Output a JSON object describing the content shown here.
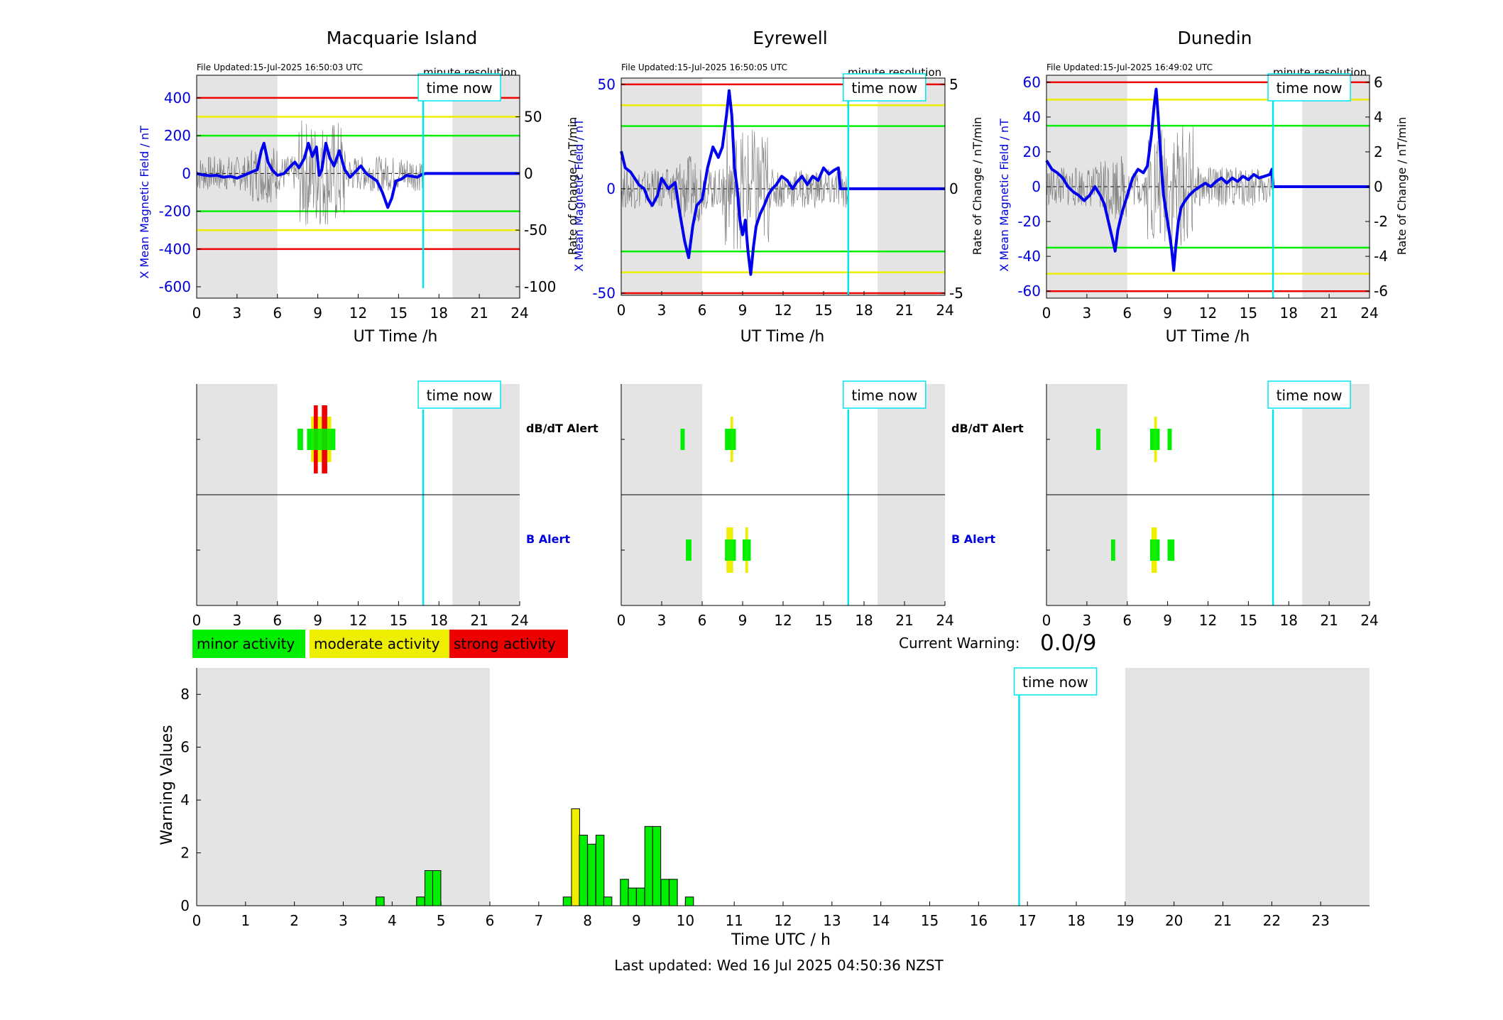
{
  "colors": {
    "night_shade": "#e4e4e4",
    "field_line": "#0000ee",
    "rate_line": "#555555",
    "time_now": "#00e5ee",
    "red": "#ee0000",
    "yellow": "#eeee00",
    "green": "#00ee00",
    "axis_blue": "#0000dd"
  },
  "time_now_label": "time now",
  "minute_resolution_label": "minute resolution",
  "x_axis_label": "UT Time /h",
  "field_axis_label": "X Mean Magnetic Field / nT",
  "rate_axis_label": "Rate of Change / nT/min",
  "alert_labels": {
    "dbdt": "dB/dT Alert",
    "b": "B Alert"
  },
  "legend": {
    "minor": "minor activity",
    "moderate": "moderate activity",
    "strong": "strong activity"
  },
  "current_warning": {
    "label": "Current Warning:",
    "value": "0.0/9"
  },
  "footer": {
    "last_updated": "Last updated: Wed 16 Jul 2025 04:50:36 NZST"
  },
  "chart_data": [
    {
      "type": "line",
      "title": "Macquarie Island",
      "file_updated": "File Updated:15-Jul-2025 16:50:03 UTC",
      "x_ticks": [
        0,
        3,
        6,
        9,
        12,
        15,
        18,
        21,
        24
      ],
      "xlim": [
        0,
        24
      ],
      "night_hours": [
        [
          0,
          6
        ],
        [
          19,
          24
        ]
      ],
      "time_now_hour": 16.83,
      "ylim_left": [
        -660,
        520
      ],
      "yticks_left": [
        400,
        200,
        0,
        -200,
        -400,
        -600
      ],
      "ylim_right": [
        -110,
        86.7
      ],
      "yticks_right": [
        50,
        0,
        -50,
        -100
      ],
      "thresholds": {
        "red": 400,
        "yellow": 300,
        "green": 200
      },
      "series": [
        {
          "values": [
            [
              0,
              0
            ],
            [
              0.5,
              -8
            ],
            [
              1,
              -12
            ],
            [
              1.5,
              -10
            ],
            [
              2,
              -20
            ],
            [
              2.5,
              -15
            ],
            [
              3,
              -25
            ],
            [
              3.5,
              -10
            ],
            [
              4,
              5
            ],
            [
              4.5,
              20
            ],
            [
              4.8,
              120
            ],
            [
              5,
              160
            ],
            [
              5.3,
              60
            ],
            [
              5.6,
              20
            ],
            [
              6,
              -10
            ],
            [
              6.5,
              0
            ],
            [
              7,
              40
            ],
            [
              7.3,
              60
            ],
            [
              7.6,
              30
            ],
            [
              8,
              80
            ],
            [
              8.3,
              160
            ],
            [
              8.6,
              90
            ],
            [
              8.9,
              140
            ],
            [
              9.1,
              -10
            ],
            [
              9.3,
              20
            ],
            [
              9.6,
              160
            ],
            [
              9.9,
              80
            ],
            [
              10.2,
              40
            ],
            [
              10.6,
              120
            ],
            [
              11,
              20
            ],
            [
              11.4,
              -20
            ],
            [
              11.8,
              10
            ],
            [
              12.2,
              40
            ],
            [
              12.6,
              0
            ],
            [
              13,
              -20
            ],
            [
              13.4,
              -40
            ],
            [
              13.8,
              -100
            ],
            [
              14.2,
              -180
            ],
            [
              14.5,
              -130
            ],
            [
              14.8,
              -40
            ],
            [
              15.2,
              -30
            ],
            [
              15.6,
              -10
            ],
            [
              16,
              -15
            ],
            [
              16.4,
              -20
            ],
            [
              16.75,
              -5
            ],
            [
              17,
              0
            ],
            [
              24,
              0
            ]
          ]
        }
      ]
    },
    {
      "type": "line",
      "title": "Eyrewell",
      "file_updated": "File Updated:15-Jul-2025 16:50:05 UTC",
      "x_ticks": [
        0,
        3,
        6,
        9,
        12,
        15,
        18,
        21,
        24
      ],
      "xlim": [
        0,
        24
      ],
      "night_hours": [
        [
          0,
          6
        ],
        [
          19,
          24
        ]
      ],
      "time_now_hour": 16.83,
      "ylim_left": [
        -51,
        53
      ],
      "yticks_left": [
        50,
        0,
        -50
      ],
      "ylim_right": [
        -5.1,
        5.3
      ],
      "yticks_right": [
        5,
        0,
        -5
      ],
      "thresholds": {
        "red": 50,
        "yellow": 40,
        "green": 30
      },
      "series": [
        {
          "values": [
            [
              0,
              18
            ],
            [
              0.3,
              10
            ],
            [
              0.7,
              8
            ],
            [
              1,
              5
            ],
            [
              1.3,
              2
            ],
            [
              1.7,
              0
            ],
            [
              2,
              -5
            ],
            [
              2.3,
              -8
            ],
            [
              2.7,
              -3
            ],
            [
              3,
              5
            ],
            [
              3.5,
              0
            ],
            [
              4,
              3
            ],
            [
              4.3,
              -10
            ],
            [
              4.7,
              -25
            ],
            [
              5,
              -33
            ],
            [
              5.3,
              -18
            ],
            [
              5.6,
              -8
            ],
            [
              6,
              -5
            ],
            [
              6.4,
              10
            ],
            [
              6.8,
              20
            ],
            [
              7.2,
              15
            ],
            [
              7.5,
              20
            ],
            [
              7.8,
              35
            ],
            [
              8,
              47
            ],
            [
              8.2,
              35
            ],
            [
              8.4,
              10
            ],
            [
              8.6,
              0
            ],
            [
              8.8,
              -15
            ],
            [
              9,
              -22
            ],
            [
              9.2,
              -15
            ],
            [
              9.4,
              -30
            ],
            [
              9.6,
              -41
            ],
            [
              9.8,
              -28
            ],
            [
              10,
              -18
            ],
            [
              10.3,
              -12
            ],
            [
              10.6,
              -8
            ],
            [
              10.9,
              -3
            ],
            [
              11.2,
              0
            ],
            [
              11.5,
              2
            ],
            [
              11.9,
              6
            ],
            [
              12.3,
              4
            ],
            [
              12.7,
              0
            ],
            [
              13,
              3
            ],
            [
              13.4,
              6
            ],
            [
              13.8,
              2
            ],
            [
              14.2,
              6
            ],
            [
              14.6,
              4
            ],
            [
              15,
              10
            ],
            [
              15.4,
              7
            ],
            [
              15.8,
              9
            ],
            [
              16.1,
              10
            ],
            [
              16.25,
              0
            ],
            [
              17,
              0
            ],
            [
              24,
              0
            ]
          ]
        }
      ]
    },
    {
      "type": "line",
      "title": "Dunedin",
      "file_updated": "File Updated:15-Jul-2025 16:49:02 UTC",
      "x_ticks": [
        0,
        3,
        6,
        9,
        12,
        15,
        18,
        21,
        24
      ],
      "xlim": [
        0,
        24
      ],
      "night_hours": [
        [
          0,
          6
        ],
        [
          19,
          24
        ]
      ],
      "time_now_hour": 16.83,
      "ylim_left": [
        -64,
        64
      ],
      "yticks_left": [
        60,
        40,
        20,
        0,
        -20,
        -40,
        -60
      ],
      "ylim_right": [
        -6.4,
        6.4
      ],
      "yticks_right": [
        6,
        4,
        2,
        0,
        -2,
        -4,
        -6
      ],
      "thresholds": {
        "red": 60,
        "yellow": 50,
        "green": 35
      },
      "series": [
        {
          "values": [
            [
              0,
              15
            ],
            [
              0.4,
              10
            ],
            [
              0.8,
              8
            ],
            [
              1.2,
              5
            ],
            [
              1.6,
              0
            ],
            [
              2,
              -3
            ],
            [
              2.4,
              -5
            ],
            [
              2.8,
              -8
            ],
            [
              3.2,
              -5
            ],
            [
              3.6,
              0
            ],
            [
              4,
              -5
            ],
            [
              4.3,
              -10
            ],
            [
              4.6,
              -20
            ],
            [
              4.9,
              -30
            ],
            [
              5.1,
              -37
            ],
            [
              5.3,
              -25
            ],
            [
              5.6,
              -15
            ],
            [
              6,
              -5
            ],
            [
              6.4,
              5
            ],
            [
              6.8,
              10
            ],
            [
              7.2,
              8
            ],
            [
              7.5,
              12
            ],
            [
              7.8,
              30
            ],
            [
              8,
              47
            ],
            [
              8.15,
              56
            ],
            [
              8.3,
              40
            ],
            [
              8.5,
              15
            ],
            [
              8.7,
              -5
            ],
            [
              8.9,
              -15
            ],
            [
              9.1,
              -25
            ],
            [
              9.3,
              -36
            ],
            [
              9.45,
              -48
            ],
            [
              9.6,
              -35
            ],
            [
              9.8,
              -20
            ],
            [
              10,
              -12
            ],
            [
              10.3,
              -8
            ],
            [
              10.6,
              -5
            ],
            [
              11,
              -2
            ],
            [
              11.4,
              0
            ],
            [
              11.8,
              2
            ],
            [
              12.2,
              0
            ],
            [
              12.6,
              3
            ],
            [
              13,
              5
            ],
            [
              13.4,
              2
            ],
            [
              13.8,
              5
            ],
            [
              14.2,
              3
            ],
            [
              14.6,
              6
            ],
            [
              15,
              4
            ],
            [
              15.4,
              7
            ],
            [
              15.8,
              5
            ],
            [
              16.2,
              6
            ],
            [
              16.6,
              7
            ],
            [
              16.75,
              10
            ],
            [
              16.85,
              0
            ],
            [
              17,
              0
            ],
            [
              24,
              0
            ]
          ]
        }
      ]
    },
    {
      "type": "heatmap",
      "title": "",
      "x_ticks": [
        0,
        3,
        6,
        9,
        12,
        15,
        18,
        21,
        24
      ],
      "night_hours": [
        [
          0,
          6
        ],
        [
          19,
          24
        ]
      ],
      "time_now_hour": 16.83,
      "dbdt": [
        {
          "start": 7.5,
          "end": 7.9,
          "level": "green"
        },
        {
          "start": 8.2,
          "end": 10.3,
          "level": "green"
        },
        {
          "start": 8.5,
          "end": 10.0,
          "level": "yellow"
        },
        {
          "start": 8.7,
          "end": 9.0,
          "level": "red"
        },
        {
          "start": 9.3,
          "end": 9.7,
          "level": "red"
        }
      ],
      "b": []
    },
    {
      "type": "heatmap",
      "title": "",
      "x_ticks": [
        0,
        3,
        6,
        9,
        12,
        15,
        18,
        21,
        24
      ],
      "night_hours": [
        [
          0,
          6
        ],
        [
          19,
          24
        ]
      ],
      "time_now_hour": 16.83,
      "dbdt": [
        {
          "start": 4.4,
          "end": 4.7,
          "level": "green"
        },
        {
          "start": 7.7,
          "end": 8.5,
          "level": "green"
        },
        {
          "start": 8.1,
          "end": 8.3,
          "level": "yellow"
        }
      ],
      "b": [
        {
          "start": 4.8,
          "end": 5.2,
          "level": "green"
        },
        {
          "start": 7.7,
          "end": 8.5,
          "level": "green"
        },
        {
          "start": 7.8,
          "end": 8.3,
          "level": "yellow"
        },
        {
          "start": 9.0,
          "end": 9.6,
          "level": "green"
        },
        {
          "start": 9.2,
          "end": 9.4,
          "level": "yellow"
        }
      ]
    },
    {
      "type": "heatmap",
      "title": "",
      "x_ticks": [
        0,
        3,
        6,
        9,
        12,
        15,
        18,
        21,
        24
      ],
      "night_hours": [
        [
          0,
          6
        ],
        [
          19,
          24
        ]
      ],
      "time_now_hour": 16.83,
      "dbdt": [
        {
          "start": 3.7,
          "end": 4.0,
          "level": "green"
        },
        {
          "start": 7.7,
          "end": 8.4,
          "level": "green"
        },
        {
          "start": 8.0,
          "end": 8.2,
          "level": "yellow"
        },
        {
          "start": 9.0,
          "end": 9.3,
          "level": "green"
        }
      ],
      "b": [
        {
          "start": 4.8,
          "end": 5.1,
          "level": "green"
        },
        {
          "start": 7.7,
          "end": 8.4,
          "level": "green"
        },
        {
          "start": 7.8,
          "end": 8.2,
          "level": "yellow"
        },
        {
          "start": 9.0,
          "end": 9.5,
          "level": "green"
        }
      ]
    },
    {
      "type": "bar",
      "title": "",
      "xlabel": "Time UTC / h",
      "ylabel": "Warning Values",
      "x_ticks": [
        0,
        1,
        2,
        3,
        4,
        5,
        6,
        7,
        8,
        9,
        10,
        11,
        12,
        13,
        14,
        15,
        16,
        17,
        18,
        19,
        20,
        21,
        22,
        23
      ],
      "y_ticks": [
        0,
        2,
        4,
        6,
        8
      ],
      "xlim": [
        0,
        24
      ],
      "ylim": [
        0,
        9
      ],
      "night_hours": [
        [
          0,
          6
        ],
        [
          19,
          24
        ]
      ],
      "time_now_hour": 16.83,
      "bin_hours": 0.1667,
      "values": [
        {
          "start": 3.67,
          "value": 0.33,
          "level": "green"
        },
        {
          "start": 4.5,
          "value": 0.33,
          "level": "green"
        },
        {
          "start": 4.67,
          "value": 1.33,
          "level": "green"
        },
        {
          "start": 4.83,
          "value": 1.33,
          "level": "green"
        },
        {
          "start": 7.5,
          "value": 0.33,
          "level": "green"
        },
        {
          "start": 7.67,
          "value": 3.67,
          "level": "yellow"
        },
        {
          "start": 7.83,
          "value": 2.67,
          "level": "green"
        },
        {
          "start": 8.0,
          "value": 2.33,
          "level": "green"
        },
        {
          "start": 8.17,
          "value": 2.67,
          "level": "green"
        },
        {
          "start": 8.33,
          "value": 0.33,
          "level": "green"
        },
        {
          "start": 8.67,
          "value": 1.0,
          "level": "green"
        },
        {
          "start": 8.83,
          "value": 0.67,
          "level": "green"
        },
        {
          "start": 9.0,
          "value": 0.67,
          "level": "green"
        },
        {
          "start": 9.17,
          "value": 3.0,
          "level": "green"
        },
        {
          "start": 9.33,
          "value": 3.0,
          "level": "green"
        },
        {
          "start": 9.5,
          "value": 1.0,
          "level": "green"
        },
        {
          "start": 9.67,
          "value": 1.0,
          "level": "green"
        },
        {
          "start": 10.0,
          "value": 0.33,
          "level": "green"
        }
      ]
    }
  ]
}
